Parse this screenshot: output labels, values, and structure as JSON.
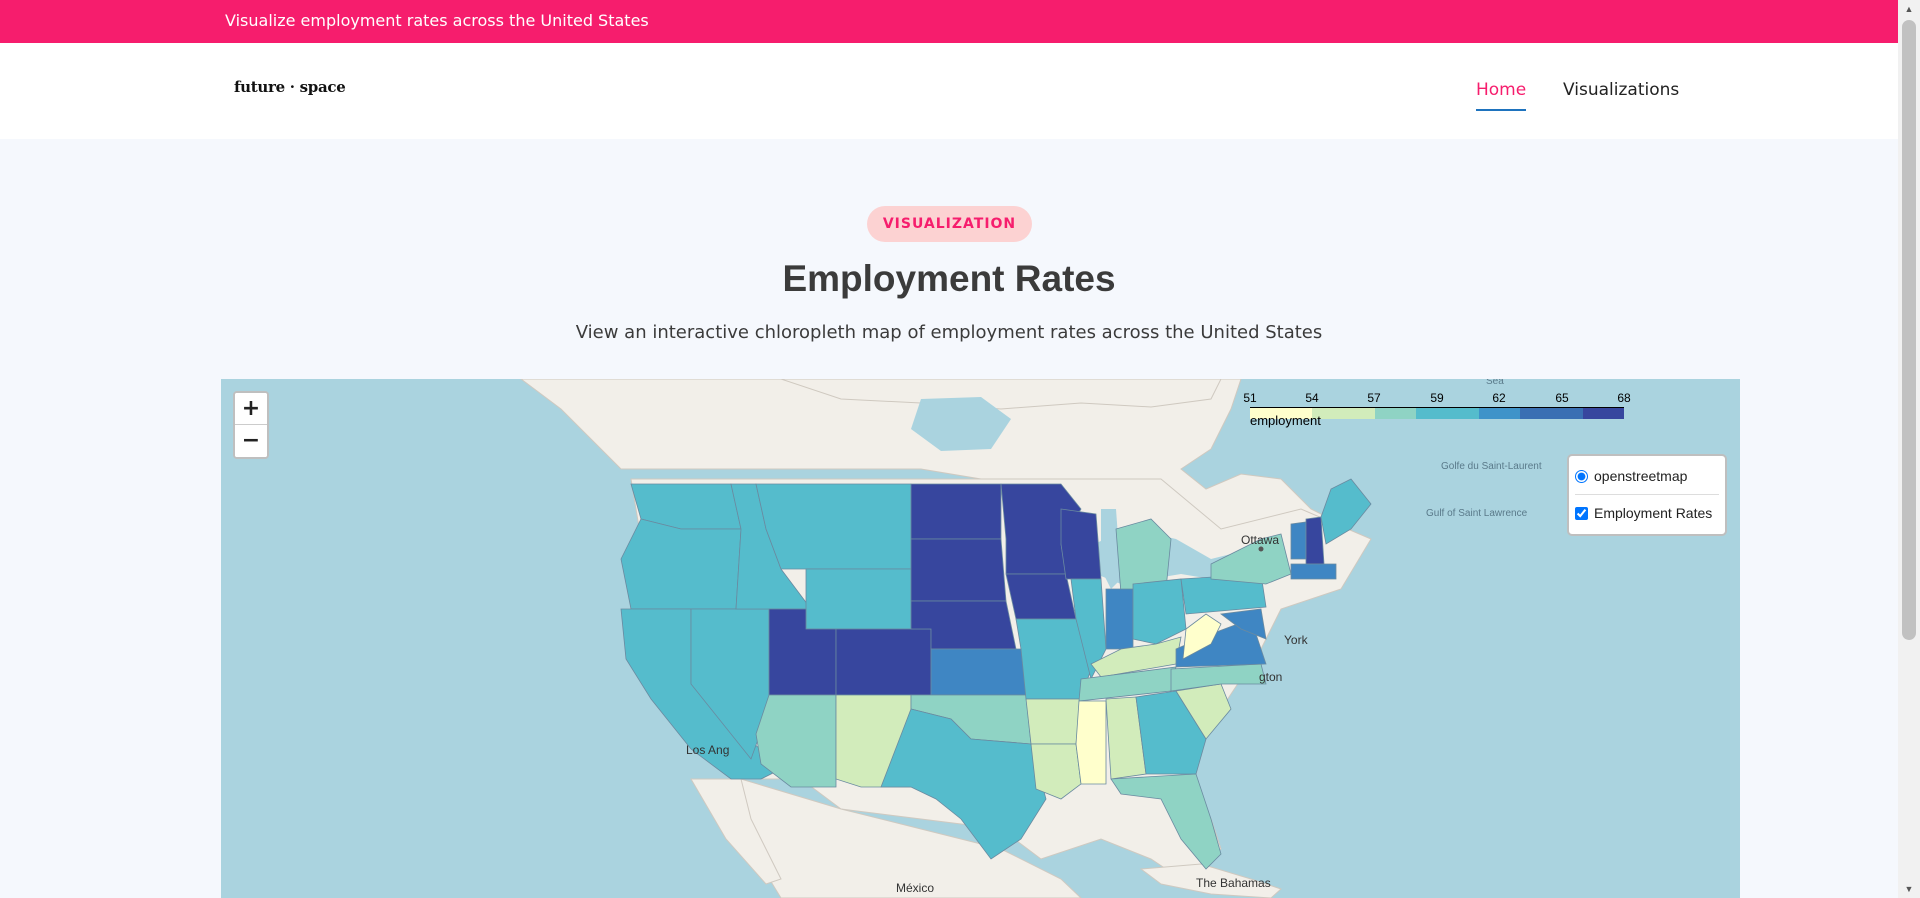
{
  "top_bar": {
    "text": "Visualize employment rates across the United States"
  },
  "nav": {
    "logo": "future · space",
    "items": [
      {
        "label": "Home",
        "active": true
      },
      {
        "label": "Visualizations",
        "active": false
      }
    ]
  },
  "hero": {
    "badge": "VISUALIZATION",
    "title": "Employment Rates",
    "subtitle": "View an interactive chloropleth map of employment rates across the United States"
  },
  "map": {
    "zoom_in": "+",
    "zoom_out": "−",
    "legend": {
      "ticks": [
        "51",
        "54",
        "57",
        "59",
        "62",
        "65",
        "68"
      ],
      "label": "employment",
      "colors": [
        "#ffffcc",
        "#d2ecbb",
        "#8fd3c4",
        "#55bccc",
        "#3f93c9",
        "#3a6fb3",
        "#37469e"
      ]
    },
    "layers": {
      "base": "openstreetmap",
      "overlay": "Employment Rates",
      "base_checked": true,
      "overlay_checked": true
    },
    "place_labels": [
      "Ottawa",
      "York",
      "gton",
      "Los Ang",
      "México",
      "The Bahamas",
      "Golfe du Saint-Laurent",
      "Gulf of Saint Lawrence",
      "Sea"
    ],
    "state_colors": {
      "WA": "#55bccc",
      "OR": "#55bccc",
      "CA": "#55bccc",
      "NV": "#55bccc",
      "ID": "#55bccc",
      "MT": "#55bccc",
      "WY": "#55bccc",
      "UT": "#37469e",
      "AZ": "#8fd3c4",
      "CO": "#37469e",
      "NM": "#d2ecbb",
      "ND": "#37469e",
      "SD": "#37469e",
      "NE": "#37469e",
      "KS": "#3f86c3",
      "OK": "#8fd3c4",
      "TX": "#55bccc",
      "MN": "#37469e",
      "IA": "#37469e",
      "MO": "#55bccc",
      "AR": "#d2ecbb",
      "LA": "#d2ecbb",
      "WI": "#37469e",
      "IL": "#55bccc",
      "MI": "#8fd3c4",
      "IN": "#3f86c3",
      "OH": "#55bccc",
      "KY": "#d2ecbb",
      "TN": "#8fd3c4",
      "MS": "#ffffcc",
      "AL": "#d2ecbb",
      "GA": "#55bccc",
      "FL": "#8fd3c4",
      "SC": "#d2ecbb",
      "NC": "#8fd3c4",
      "VA": "#3f86c3",
      "WV": "#ffffcc",
      "PA": "#55bccc",
      "NY": "#8fd3c4",
      "VT": "#3f86c3",
      "NH": "#37469e",
      "ME": "#55bccc",
      "MA": "#3f86c3",
      "MD": "#3f86c3"
    }
  }
}
